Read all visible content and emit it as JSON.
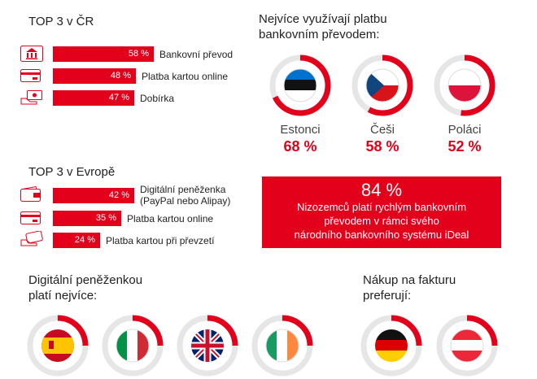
{
  "top3_cr": {
    "title": "TOP 3 v ČR",
    "items": [
      {
        "label": "Bankovní převod",
        "value_label": "58 %",
        "value": 58,
        "icon": "bank-icon"
      },
      {
        "label": "Platba kartou online",
        "value_label": "48 %",
        "value": 48,
        "icon": "card-icon"
      },
      {
        "label": "Dobírka",
        "value_label": "47 %",
        "value": 47,
        "icon": "cash-hand-icon"
      }
    ]
  },
  "bank_transfer": {
    "title_line1": "Nejvíce využívají platbu",
    "title_line2": "bankovním převodem:",
    "countries": [
      {
        "name": "Estonci",
        "value_label": "68 %",
        "value": 68,
        "flag": "estonia-flag-icon"
      },
      {
        "name": "Češi",
        "value_label": "58 %",
        "value": 58,
        "flag": "czech-flag-icon"
      },
      {
        "name": "Poláci",
        "value_label": "52 %",
        "value": 52,
        "flag": "poland-flag-icon"
      }
    ]
  },
  "top3_europe": {
    "title": "TOP 3 v Evropě",
    "items": [
      {
        "label_line1": "Digitální peněženka",
        "label_line2": "(PayPal nebo Alipay)",
        "value_label": "42 %",
        "value": 42,
        "icon": "wallet-icon"
      },
      {
        "label_line1": "Platba kartou online",
        "label_line2": "",
        "value_label": "35 %",
        "value": 35,
        "icon": "card-icon"
      },
      {
        "label_line1": "Platba kartou při převzetí",
        "label_line2": "",
        "value_label": "24 %",
        "value": 24,
        "icon": "card-hand-icon"
      }
    ]
  },
  "netherlands": {
    "value_label": "84 %",
    "line1": "Nizozemců platí rychlým bankovním",
    "line2": "převodem v rámci svého",
    "line3": "národního bankovního systému iDeal"
  },
  "wallet": {
    "title_line1": "Digitální peněženkou",
    "title_line2": "platí nejvíce:",
    "flags": [
      "spain-flag-icon",
      "italy-flag-icon",
      "uk-flag-icon",
      "ireland-flag-icon"
    ]
  },
  "invoice": {
    "title_line1": "Nákup na fakturu",
    "title_line2": "preferují:",
    "flags": [
      "germany-flag-icon",
      "austria-flag-icon"
    ]
  },
  "colors": {
    "accent": "#e2001a",
    "ring_track": "#e6e6e6"
  },
  "chart_data": [
    {
      "type": "bar",
      "title": "TOP 3 v ČR",
      "categories": [
        "Bankovní převod",
        "Platba kartou online",
        "Dobírka"
      ],
      "values": [
        58,
        48,
        47
      ],
      "unit": "%"
    },
    {
      "type": "pie",
      "title": "Nejvíce využívají platbu bankovním převodem:",
      "categories": [
        "Estonci",
        "Češi",
        "Poláci"
      ],
      "values": [
        68,
        58,
        52
      ],
      "unit": "%"
    },
    {
      "type": "bar",
      "title": "TOP 3 v Evropě",
      "categories": [
        "Digitální peněženka (PayPal nebo Alipay)",
        "Platba kartou online",
        "Platba kartou při převzetí"
      ],
      "values": [
        42,
        35,
        24
      ],
      "unit": "%"
    }
  ]
}
